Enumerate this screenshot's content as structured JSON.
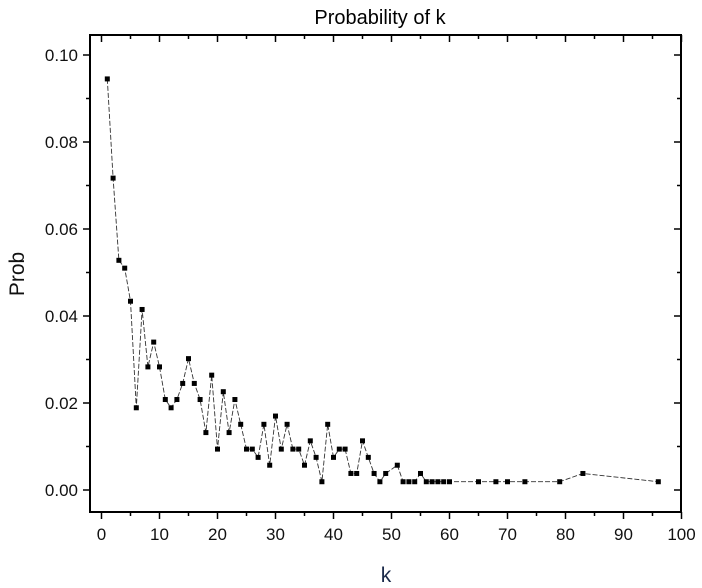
{
  "chart_data": {
    "type": "line",
    "title": "Probability of k",
    "xlabel": "k",
    "ylabel": "Prob",
    "xlim": [
      -2,
      100
    ],
    "ylim": [
      -0.005,
      0.105
    ],
    "xticks": [
      0,
      10,
      20,
      30,
      40,
      50,
      60,
      70,
      80,
      90,
      100
    ],
    "xtick_labels": [
      "0",
      "10",
      "20",
      "30",
      "40",
      "50",
      "60",
      "70",
      "80",
      "90",
      "100"
    ],
    "yticks": [
      0.0,
      0.02,
      0.04,
      0.06,
      0.08,
      0.1
    ],
    "ytick_labels": [
      "0.00",
      "0.02",
      "0.04",
      "0.06",
      "0.08",
      "0.10"
    ],
    "grid": false,
    "legend": null,
    "marker": "square",
    "line_style": "dashed-thin",
    "series": [
      {
        "name": "Prob",
        "color": "#000000",
        "x": [
          1,
          2,
          3,
          4,
          5,
          6,
          7,
          8,
          9,
          10,
          11,
          12,
          13,
          14,
          15,
          16,
          17,
          18,
          19,
          20,
          21,
          22,
          23,
          24,
          25,
          26,
          27,
          28,
          29,
          30,
          31,
          32,
          33,
          34,
          35,
          36,
          37,
          38,
          39,
          40,
          41,
          42,
          43,
          44,
          45,
          46,
          47,
          48,
          49,
          51,
          52,
          53,
          54,
          55,
          56,
          57,
          58,
          59,
          60,
          65,
          68,
          70,
          73,
          79,
          83,
          96
        ],
        "y": [
          0.0945,
          0.0717,
          0.0528,
          0.051,
          0.0434,
          0.0189,
          0.0415,
          0.0283,
          0.034,
          0.0283,
          0.0208,
          0.0189,
          0.0208,
          0.0245,
          0.0302,
          0.0245,
          0.0208,
          0.0132,
          0.0264,
          0.0094,
          0.0226,
          0.0132,
          0.0208,
          0.0151,
          0.0094,
          0.0094,
          0.0075,
          0.0151,
          0.0057,
          0.017,
          0.0094,
          0.0151,
          0.0094,
          0.0094,
          0.0057,
          0.0113,
          0.0075,
          0.0019,
          0.0151,
          0.0075,
          0.0094,
          0.0094,
          0.0038,
          0.0038,
          0.0113,
          0.0075,
          0.0038,
          0.0019,
          0.0038,
          0.0057,
          0.0019,
          0.0019,
          0.0019,
          0.0038,
          0.0019,
          0.0019,
          0.0019,
          0.0019,
          0.0019,
          0.0019,
          0.0019,
          0.0019,
          0.0019,
          0.0019,
          0.0038,
          0.0019
        ]
      }
    ]
  }
}
